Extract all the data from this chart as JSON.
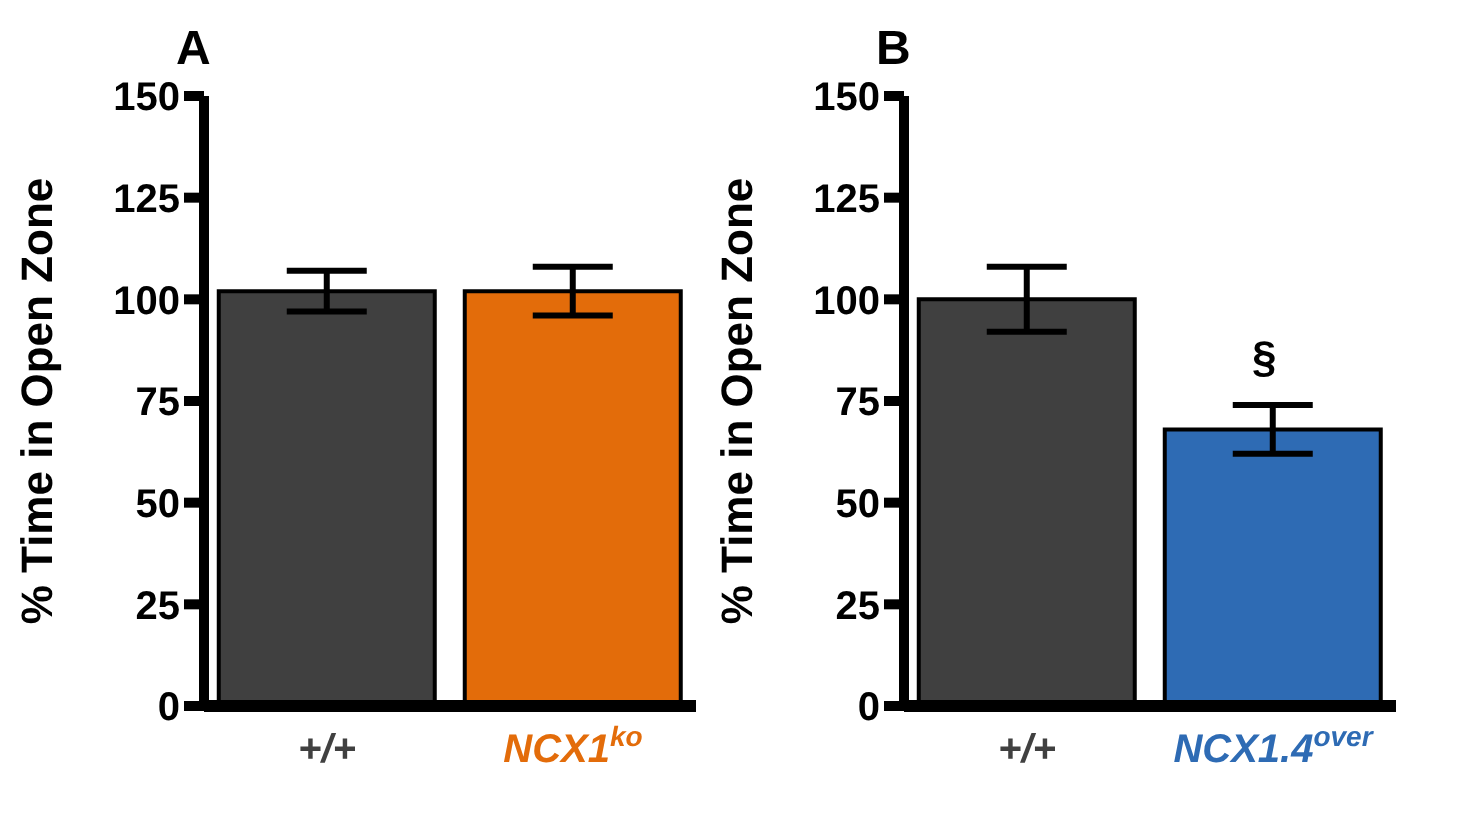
{
  "chart_data": [
    {
      "type": "bar",
      "title": "A",
      "ylabel": "% Time in Open Zone",
      "categories": [
        "+/+",
        "NCX1$^{ko}$"
      ],
      "values": [
        102,
        102
      ],
      "errors": [
        5,
        6
      ],
      "colors": [
        "#404040",
        "#e36c0a"
      ],
      "ylim": [
        0,
        150
      ],
      "yticks": [
        0,
        25,
        50,
        75,
        100,
        125,
        150
      ],
      "grid": false,
      "legend": false
    },
    {
      "type": "bar",
      "title": "B",
      "ylabel": "% Time in Open Zone",
      "categories": [
        "+/+",
        "NCX1.4$^{over}$"
      ],
      "values": [
        100,
        68
      ],
      "errors": [
        8,
        6
      ],
      "colors": [
        "#404040",
        "#2e6bb4"
      ],
      "ylim": [
        0,
        150
      ],
      "yticks": [
        0,
        25,
        50,
        75,
        100,
        125,
        150
      ],
      "grid": false,
      "legend": false,
      "annotations": [
        "§"
      ]
    }
  ]
}
